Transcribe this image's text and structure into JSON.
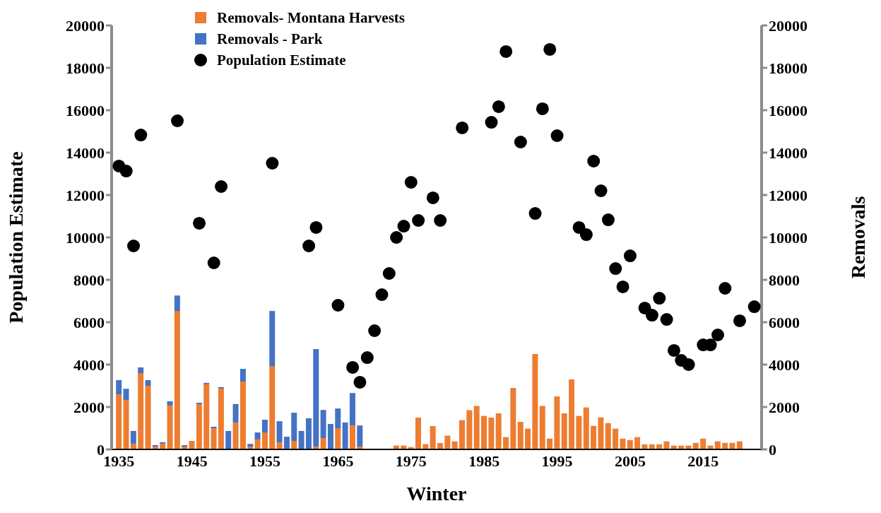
{
  "chart_data": {
    "type": "bar",
    "xlabel": "Winter",
    "ylabel": "Population Estimate",
    "y2label": "Removals",
    "x": [
      1935,
      1936,
      1937,
      1938,
      1939,
      1940,
      1941,
      1942,
      1943,
      1944,
      1945,
      1946,
      1947,
      1948,
      1949,
      1950,
      1951,
      1952,
      1953,
      1954,
      1955,
      1956,
      1957,
      1958,
      1959,
      1960,
      1961,
      1962,
      1963,
      1964,
      1965,
      1966,
      1967,
      1968,
      1969,
      1970,
      1971,
      1972,
      1973,
      1974,
      1975,
      1976,
      1977,
      1978,
      1979,
      1980,
      1981,
      1982,
      1983,
      1984,
      1985,
      1986,
      1987,
      1988,
      1989,
      1990,
      1991,
      1992,
      1993,
      1994,
      1995,
      1996,
      1997,
      1998,
      1999,
      2000,
      2001,
      2002,
      2003,
      2004,
      2005,
      2006,
      2007,
      2008,
      2009,
      2010,
      2011,
      2012,
      2013,
      2014,
      2015,
      2016,
      2017,
      2018,
      2019,
      2020,
      2021,
      2022
    ],
    "series": [
      {
        "name": "Removals- Montana Harvests",
        "axis": "y2",
        "color": "#ed7d31",
        "values": [
          2600,
          2330,
          270,
          3600,
          3000,
          130,
          270,
          2070,
          6530,
          130,
          400,
          2130,
          3070,
          1000,
          2870,
          0,
          1270,
          3200,
          130,
          470,
          800,
          3930,
          330,
          0,
          400,
          0,
          0,
          130,
          530,
          0,
          1000,
          0,
          1130,
          130,
          null,
          null,
          null,
          null,
          180,
          180,
          110,
          1500,
          250,
          1100,
          300,
          650,
          380,
          1380,
          1850,
          2050,
          1580,
          1500,
          1700,
          580,
          2900,
          1300,
          980,
          4500,
          2050,
          510,
          2500,
          1700,
          3300,
          1580,
          1980,
          1110,
          1510,
          1240,
          980,
          510,
          440,
          580,
          240,
          240,
          240,
          380,
          180,
          180,
          180,
          310,
          510,
          180,
          380,
          310,
          310,
          380,
          null,
          null
        ]
      },
      {
        "name": "Removals - Park",
        "axis": "y2",
        "color": "#4472c4",
        "values": [
          670,
          530,
          600,
          270,
          270,
          70,
          70,
          200,
          730,
          70,
          0,
          70,
          70,
          70,
          70,
          870,
          870,
          600,
          130,
          330,
          600,
          2600,
          1000,
          600,
          1330,
          870,
          1470,
          4600,
          1330,
          1200,
          930,
          1270,
          1530,
          1000,
          null,
          null,
          null,
          null,
          null,
          null,
          null,
          null,
          null,
          null,
          null,
          null,
          null,
          null,
          null,
          null,
          null,
          null,
          null,
          null,
          null,
          null,
          null,
          null,
          null,
          null,
          null,
          null,
          null,
          null,
          null,
          null,
          null,
          null,
          null,
          null,
          null,
          null,
          null,
          null,
          null,
          null,
          null,
          null,
          null,
          null,
          null,
          null,
          null,
          null,
          null,
          null,
          null,
          null
        ]
      },
      {
        "name": "Population Estimate",
        "type": "scatter",
        "color": "#000000",
        "values": [
          13370,
          13130,
          9600,
          14830,
          null,
          null,
          null,
          null,
          15500,
          null,
          null,
          10670,
          null,
          8800,
          12400,
          null,
          null,
          null,
          null,
          null,
          null,
          13500,
          null,
          null,
          null,
          null,
          9600,
          10470,
          null,
          null,
          6800,
          null,
          3870,
          3170,
          4330,
          5600,
          7300,
          8300,
          10000,
          10530,
          12600,
          10800,
          null,
          11870,
          10800,
          null,
          null,
          15170,
          null,
          null,
          null,
          15430,
          16170,
          18770,
          null,
          14500,
          null,
          11130,
          16070,
          18870,
          14800,
          null,
          null,
          10470,
          10130,
          13600,
          12200,
          10830,
          8530,
          7670,
          9130,
          null,
          6670,
          6330,
          7130,
          6130,
          4670,
          4200,
          4000,
          null,
          4930,
          4930,
          5400,
          7600,
          null,
          6070,
          null,
          6730
        ]
      }
    ],
    "stacked": true,
    "marker": "circle",
    "legend": "top left",
    "xlim": [
      1934,
      2023
    ],
    "xticks": [
      1935,
      1945,
      1955,
      1965,
      1975,
      1985,
      1995,
      2005,
      2015
    ],
    "ylim": [
      0,
      20000
    ],
    "yticks": [
      0,
      2000,
      4000,
      6000,
      8000,
      10000,
      12000,
      14000,
      16000,
      18000,
      20000
    ],
    "y2lim": [
      0,
      20000
    ],
    "y2ticks": [
      0,
      2000,
      4000,
      6000,
      8000,
      10000,
      12000,
      14000,
      16000,
      18000,
      20000
    ]
  }
}
